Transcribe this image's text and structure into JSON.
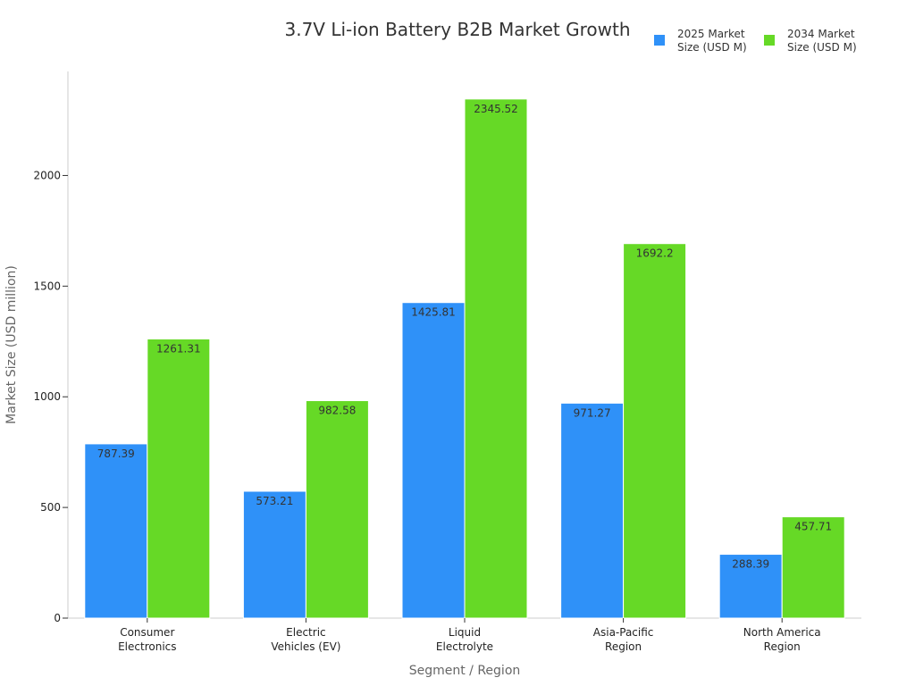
{
  "colors": {
    "series_2025": "#2f91f8",
    "series_2034": "#66d926",
    "axis": "#cccccc",
    "text": "#333333"
  },
  "chart_data": {
    "type": "bar",
    "title": "3.7V Li-ion Battery B2B Market Growth",
    "xlabel": "Segment / Region",
    "ylabel": "Market Size (USD million)",
    "categories": [
      [
        "Consumer",
        "Electronics"
      ],
      [
        "Electric",
        "Vehicles (EV)"
      ],
      [
        "Liquid",
        "Electrolyte"
      ],
      [
        "Asia-Pacific",
        "Region"
      ],
      [
        "North America",
        "Region"
      ]
    ],
    "series": [
      {
        "name": "2025 Market Size (USD M)",
        "legend_lines": [
          "2025 Market",
          "Size (USD M)"
        ],
        "color": "#2f91f8",
        "values": [
          787.39,
          573.21,
          1425.81,
          971.27,
          288.39
        ],
        "labels": [
          "787.39",
          "573.21",
          "1425.81",
          "971.27",
          "288.39"
        ]
      },
      {
        "name": "2034 Market Size (USD M)",
        "legend_lines": [
          "2034 Market",
          "Size (USD M)"
        ],
        "color": "#66d926",
        "values": [
          1261.31,
          982.58,
          2345.52,
          1692.2,
          457.71
        ],
        "labels": [
          "1261.31",
          "982.58",
          "2345.52",
          "1692.2",
          "457.71"
        ]
      }
    ],
    "ylim": [
      0,
      2470
    ],
    "yticks": [
      0,
      500,
      1000,
      1500,
      2000
    ],
    "grid": false,
    "legend_position": "top-right"
  }
}
